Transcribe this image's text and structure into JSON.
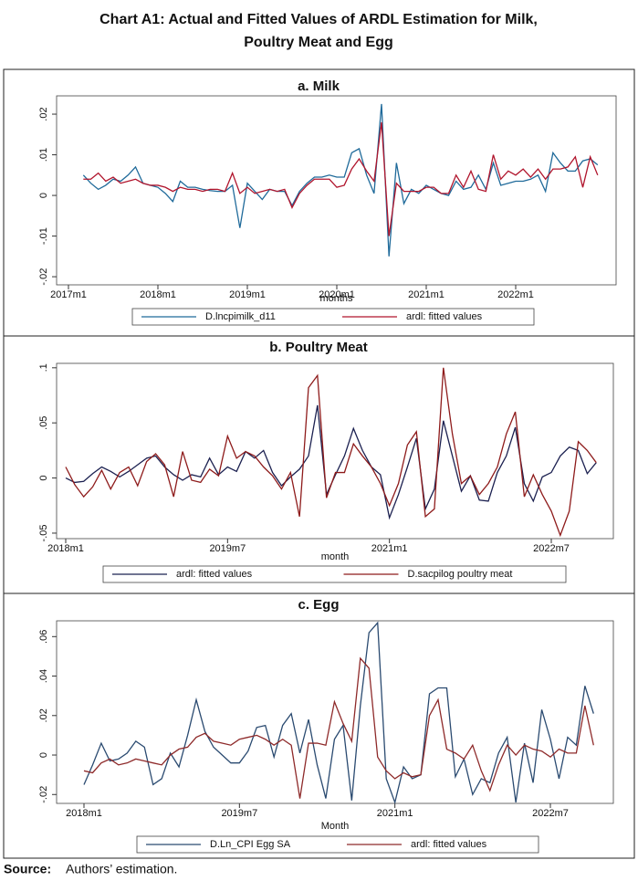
{
  "title_lines": [
    "Chart A1: Actual and Fitted Values of ARDL Estimation for Milk,",
    "Poultry Meat and Egg"
  ],
  "source": {
    "label": "Source:",
    "text": "Authors’ estimation."
  },
  "chart_data": [
    {
      "type": "line",
      "title": "a. Milk",
      "x_label": "months",
      "x": [
        "2017m3",
        "2017m4",
        "2017m5",
        "2017m6",
        "2017m7",
        "2017m8",
        "2017m9",
        "2017m10",
        "2017m11",
        "2017m12",
        "2018m1",
        "2018m2",
        "2018m3",
        "2018m4",
        "2018m5",
        "2018m6",
        "2018m7",
        "2018m8",
        "2018m9",
        "2018m10",
        "2018m11",
        "2018m12",
        "2019m1",
        "2019m2",
        "2019m3",
        "2019m4",
        "2019m5",
        "2019m6",
        "2019m7",
        "2019m8",
        "2019m9",
        "2019m10",
        "2019m11",
        "2019m12",
        "2020m1",
        "2020m2",
        "2020m3",
        "2020m4",
        "2020m5",
        "2020m6",
        "2020m7",
        "2020m8",
        "2020m9",
        "2020m10",
        "2020m11",
        "2020m12",
        "2021m1",
        "2021m2",
        "2021m3",
        "2021m4",
        "2021m5",
        "2021m6",
        "2021m7",
        "2021m8",
        "2021m9",
        "2021m10",
        "2021m11",
        "2021m12",
        "2022m1",
        "2022m2",
        "2022m3",
        "2022m4",
        "2022m5",
        "2022m6",
        "2022m7",
        "2022m8",
        "2022m9",
        "2022m10",
        "2022m11",
        "2022m12"
      ],
      "xticks": [
        "2017m1",
        "2018m1",
        "2019m1",
        "2020m1",
        "2021m1",
        "2022m1"
      ],
      "ylim": [
        -0.022,
        0.0245
      ],
      "yticks": [
        {
          "value": -0.02,
          "label": "-.02"
        },
        {
          "value": -0.01,
          "label": "-.01"
        },
        0,
        {
          "value": 0.01,
          "label": ".01"
        },
        {
          "value": 0.02,
          "label": ".02"
        }
      ],
      "grid": false,
      "series": [
        {
          "name": "D.lncpimilk_d11",
          "color": "#1f6a9a",
          "values": [
            0.005,
            0.003,
            0.0015,
            0.0025,
            0.004,
            0.0035,
            0.005,
            0.007,
            0.003,
            0.0025,
            0.002,
            0.0005,
            -0.0015,
            0.0035,
            0.002,
            0.002,
            0.0015,
            0.0012,
            0.001,
            0.001,
            0.0025,
            -0.008,
            0.003,
            0.001,
            -0.001,
            0.0015,
            0.001,
            0.001,
            -0.0025,
            0.001,
            0.003,
            0.0045,
            0.0045,
            0.005,
            0.0045,
            0.0045,
            0.0105,
            0.0115,
            0.005,
            0.0005,
            0.0225,
            -0.015,
            0.008,
            -0.002,
            0.0015,
            0.0005,
            0.0025,
            0.0015,
            0.0005,
            0,
            0.0035,
            0.0015,
            0.002,
            0.005,
            0.0015,
            0.008,
            0.0025,
            0.003,
            0.0035,
            0.0035,
            0.004,
            0.005,
            0.001,
            0.0105,
            0.008,
            0.006,
            0.006,
            0.0085,
            0.009,
            0.0075
          ]
        },
        {
          "name": "ardl: fitted values",
          "color": "#b0142c",
          "values": [
            0.004,
            0.004,
            0.0055,
            0.0035,
            0.0045,
            0.003,
            0.0035,
            0.004,
            0.003,
            0.0025,
            0.0025,
            0.002,
            0.001,
            0.002,
            0.0015,
            0.0015,
            0.001,
            0.0015,
            0.0015,
            0.001,
            0.0055,
            0.0005,
            0.002,
            0.0005,
            0.001,
            0.0015,
            0.001,
            0.0015,
            -0.003,
            0.0005,
            0.0025,
            0.004,
            0.004,
            0.004,
            0.002,
            0.0025,
            0.0065,
            0.009,
            0.006,
            0.0035,
            0.018,
            -0.01,
            0.003,
            0.001,
            0.001,
            0.001,
            0.002,
            0.002,
            0.0005,
            0.0005,
            0.005,
            0.002,
            0.006,
            0.0015,
            0.001,
            0.01,
            0.004,
            0.006,
            0.005,
            0.0065,
            0.0045,
            0.0065,
            0.004,
            0.0065,
            0.0065,
            0.007,
            0.0095,
            0.002,
            0.0095,
            0.005
          ]
        }
      ]
    },
    {
      "type": "line",
      "title": "b. Poultry Meat",
      "x_label": "month",
      "x": [
        "2018m1",
        "2018m2",
        "2018m3",
        "2018m4",
        "2018m5",
        "2018m6",
        "2018m7",
        "2018m8",
        "2018m9",
        "2018m10",
        "2018m11",
        "2018m12",
        "2019m1",
        "2019m2",
        "2019m3",
        "2019m4",
        "2019m5",
        "2019m6",
        "2019m7",
        "2019m8",
        "2019m9",
        "2019m10",
        "2019m11",
        "2019m12",
        "2020m1",
        "2020m2",
        "2020m3",
        "2020m4",
        "2020m5",
        "2020m6",
        "2020m7",
        "2020m8",
        "2020m9",
        "2020m10",
        "2020m11",
        "2020m12",
        "2021m1",
        "2021m2",
        "2021m3",
        "2021m4",
        "2021m5",
        "2021m6",
        "2021m7",
        "2021m8",
        "2021m9",
        "2021m10",
        "2021m11",
        "2021m12",
        "2022m1",
        "2022m2",
        "2022m3",
        "2022m4",
        "2022m5",
        "2022m6",
        "2022m7",
        "2022m8",
        "2022m9",
        "2022m10",
        "2022m11",
        "2022m12"
      ],
      "xticks": [
        "2018m1",
        "2019m7",
        "2021m1",
        "2022m7"
      ],
      "ylim": [
        -0.055,
        0.104
      ],
      "yticks": [
        {
          "value": -0.05,
          "label": "-.05"
        },
        0,
        {
          "value": 0.05,
          "label": ".05"
        },
        {
          "value": 0.1,
          "label": ".1"
        }
      ],
      "grid": false,
      "series": [
        {
          "name": "ardl: fitted values",
          "color": "#1b2050",
          "values": [
            0,
            -0.004,
            -0.003,
            0.004,
            0.01,
            0.006,
            0.001,
            0.006,
            0.012,
            0.018,
            0.02,
            0.01,
            0.003,
            -0.002,
            0.003,
            0.001,
            0.018,
            0.003,
            0.01,
            0.006,
            0.024,
            0.018,
            0.025,
            0.005,
            -0.007,
            0.001,
            0.008,
            0.02,
            0.066,
            -0.015,
            0.003,
            0.02,
            0.045,
            0.025,
            0.01,
            0.003,
            -0.036,
            -0.015,
            0.01,
            0.036,
            -0.028,
            -0.01,
            0.052,
            0.02,
            -0.012,
            0.002,
            -0.02,
            -0.021,
            0.005,
            0.02,
            0.046,
            -0.005,
            -0.021,
            0.001,
            0.005,
            0.02,
            0.028,
            0.025,
            0.004,
            0.014
          ]
        },
        {
          "name": "D.sacpilog poultry meat",
          "color": "#8e1b1b",
          "values": [
            0.01,
            -0.006,
            -0.017,
            -0.008,
            0.007,
            -0.01,
            0.005,
            0.01,
            -0.007,
            0.015,
            0.022,
            0.012,
            -0.017,
            0.024,
            -0.002,
            -0.004,
            0.008,
            0.002,
            0.038,
            0.018,
            0.024,
            0.02,
            0.01,
            0.002,
            -0.01,
            0.005,
            -0.035,
            0.082,
            0.093,
            -0.018,
            0.005,
            0.005,
            0.031,
            0.02,
            0.01,
            -0.005,
            -0.025,
            -0.005,
            0.03,
            0.042,
            -0.035,
            -0.028,
            0.1,
            0.04,
            -0.005,
            0.002,
            -0.015,
            -0.005,
            0.01,
            0.04,
            0.06,
            -0.017,
            0.003,
            -0.015,
            -0.03,
            -0.052,
            -0.03,
            0.033,
            0.025,
            0.014
          ]
        }
      ]
    },
    {
      "type": "line",
      "title": "c. Egg",
      "x_label": "Month",
      "x": [
        "2018m1",
        "2018m2",
        "2018m3",
        "2018m4",
        "2018m5",
        "2018m6",
        "2018m7",
        "2018m8",
        "2018m9",
        "2018m10",
        "2018m11",
        "2018m12",
        "2019m1",
        "2019m2",
        "2019m3",
        "2019m4",
        "2019m5",
        "2019m6",
        "2019m7",
        "2019m8",
        "2019m9",
        "2019m10",
        "2019m11",
        "2019m12",
        "2020m1",
        "2020m2",
        "2020m3",
        "2020m4",
        "2020m5",
        "2020m6",
        "2020m7",
        "2020m8",
        "2020m9",
        "2020m10",
        "2020m11",
        "2020m12",
        "2021m1",
        "2021m2",
        "2021m3",
        "2021m4",
        "2021m5",
        "2021m6",
        "2021m7",
        "2021m8",
        "2021m9",
        "2021m10",
        "2021m11",
        "2021m12",
        "2022m1",
        "2022m2",
        "2022m3",
        "2022m4",
        "2022m5",
        "2022m6",
        "2022m7",
        "2022m8",
        "2022m9",
        "2022m10",
        "2022m11",
        "2022m12"
      ],
      "xticks": [
        "2018m1",
        "2019m7",
        "2021m1",
        "2022m7"
      ],
      "ylim": [
        -0.0245,
        0.068
      ],
      "yticks": [
        {
          "value": -0.02,
          "label": "-.02"
        },
        0,
        {
          "value": 0.02,
          "label": ".02"
        },
        {
          "value": 0.04,
          "label": ".04"
        },
        {
          "value": 0.06,
          "label": ".06"
        }
      ],
      "grid": false,
      "series": [
        {
          "name": "D.Ln_CPI Egg SA",
          "color": "#2a4a70",
          "values": [
            -0.015,
            -0.005,
            0.006,
            -0.003,
            -0.002,
            0.001,
            0.007,
            0.004,
            -0.015,
            -0.012,
            0.001,
            -0.006,
            0.01,
            0.028,
            0.012,
            0.004,
            0,
            -0.004,
            -0.004,
            0.002,
            0.014,
            0.015,
            -0.001,
            0.015,
            0.021,
            0.001,
            0.018,
            -0.005,
            -0.022,
            0.008,
            0.015,
            -0.023,
            0.025,
            0.062,
            0.067,
            -0.012,
            -0.024,
            -0.006,
            -0.012,
            -0.01,
            0.031,
            0.034,
            0.034,
            -0.011,
            -0.002,
            -0.02,
            -0.012,
            -0.014,
            0.001,
            0.009,
            -0.024,
            0.006,
            -0.014,
            0.023,
            0.008,
            -0.012,
            0.009,
            0.005,
            0.035,
            0.021
          ]
        },
        {
          "name": "ardl: fitted values",
          "color": "#8e2a2a",
          "values": [
            -0.008,
            -0.009,
            -0.004,
            -0.002,
            -0.005,
            -0.004,
            -0.002,
            -0.003,
            -0.004,
            -0.005,
            0,
            0.003,
            0.004,
            0.009,
            0.011,
            0.007,
            0.006,
            0.005,
            0.008,
            0.009,
            0.01,
            0.008,
            0.005,
            0.008,
            0.005,
            -0.022,
            0.006,
            0.006,
            0.005,
            0.027,
            0.016,
            0.007,
            0.049,
            0.044,
            -0.001,
            -0.008,
            -0.012,
            -0.009,
            -0.011,
            -0.01,
            0.02,
            0.028,
            0.003,
            0.001,
            -0.002,
            0.005,
            -0.008,
            -0.018,
            -0.005,
            0.005,
            0,
            0.005,
            0.003,
            0.002,
            -0.001,
            0.003,
            0.001,
            0.001,
            0.025,
            0.005
          ]
        }
      ]
    }
  ]
}
